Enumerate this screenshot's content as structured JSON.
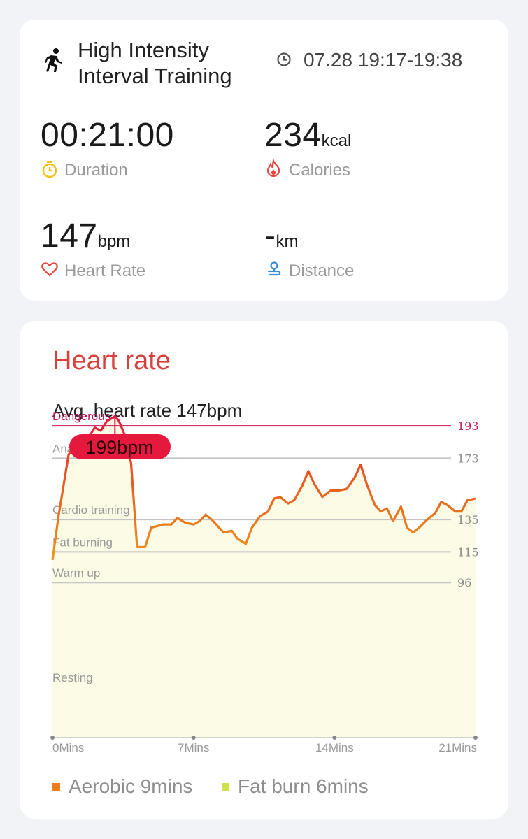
{
  "summary": {
    "activity_icon": "running-figure-icon",
    "title": "High Intensity\nInterval Training",
    "time_icon": "clock-icon",
    "time": "07.28 19:17-19:38",
    "duration": {
      "value": "00:21:00",
      "label": "Duration",
      "icon": "stopwatch-icon",
      "icon_color": "#f2c21b"
    },
    "calories": {
      "value": "234",
      "unit": "kcal",
      "label": "Calories",
      "icon": "flame-icon",
      "icon_color": "#e8453c"
    },
    "heart_rate": {
      "value": "147",
      "unit": "bpm",
      "label": "Heart Rate",
      "icon": "heart-icon",
      "icon_color": "#e8453c"
    },
    "distance": {
      "value": "-",
      "unit": "km",
      "label": "Distance",
      "icon": "route-icon",
      "icon_color": "#3a8fd8"
    }
  },
  "heart_rate_card": {
    "title": "Heart rate",
    "avg_text": "Avg. heart rate 147bpm",
    "peak_label": "199bpm",
    "legend": [
      {
        "label": "Aerobic 9mins",
        "color": "#f07b1c"
      },
      {
        "label": "Fat burn 6mins",
        "color": "#cfe04a"
      }
    ]
  },
  "chart_data": {
    "type": "line",
    "xlabel": "",
    "ylabel": "",
    "x_ticks": [
      "0Mins",
      "7Mins",
      "14Mins",
      "21Mins"
    ],
    "xlim": [
      0,
      21
    ],
    "zones": [
      {
        "name": "Dangerous",
        "threshold": 193,
        "color": "#c2185b"
      },
      {
        "name": "Anaerobic",
        "threshold": 173
      },
      {
        "name": "Cardio training",
        "threshold": 135
      },
      {
        "name": "Fat burning",
        "threshold": 115
      },
      {
        "name": "Warm up",
        "threshold": 96
      },
      {
        "name": "Resting",
        "threshold": null
      }
    ],
    "peak": {
      "x": 3.1,
      "y": 199
    },
    "series": [
      {
        "x": [
          0,
          0.3,
          0.6,
          0.8,
          1.0,
          1.3,
          1.6,
          1.9,
          2.1,
          2.4,
          2.7,
          3.0,
          3.1,
          3.3,
          3.6,
          3.9,
          4.2,
          4.6,
          4.9,
          5.2,
          5.5,
          5.9,
          6.2,
          6.6,
          7.0,
          7.3,
          7.6,
          7.9,
          8.2,
          8.5,
          8.9,
          9.2,
          9.6,
          9.9,
          10.3,
          10.7,
          11.0,
          11.3,
          11.7,
          12.0,
          12.4,
          12.7,
          13.0,
          13.4,
          13.8,
          14.2,
          14.6,
          15.0,
          15.3,
          15.6,
          16.0,
          16.3,
          16.6,
          16.9,
          17.3,
          17.6,
          17.9,
          18.2,
          18.6,
          19.0,
          19.3,
          19.6,
          20.0,
          20.3,
          20.6,
          21.0
        ],
        "y": [
          110,
          137,
          160,
          175,
          180,
          185,
          183,
          188,
          192,
          190,
          196,
          198,
          199,
          196,
          187,
          170,
          118,
          118,
          130,
          131,
          132,
          132,
          136,
          133,
          132,
          134,
          138,
          135,
          131,
          127,
          128,
          123,
          120,
          130,
          137,
          140,
          148,
          149,
          145,
          147,
          156,
          165,
          157,
          149,
          153,
          153,
          154,
          161,
          169,
          157,
          144,
          140,
          142,
          134,
          143,
          130,
          127,
          130,
          135,
          139,
          146,
          144,
          140,
          140,
          147,
          148
        ]
      }
    ],
    "ylim": [
      0,
      205
    ],
    "grid": false
  }
}
